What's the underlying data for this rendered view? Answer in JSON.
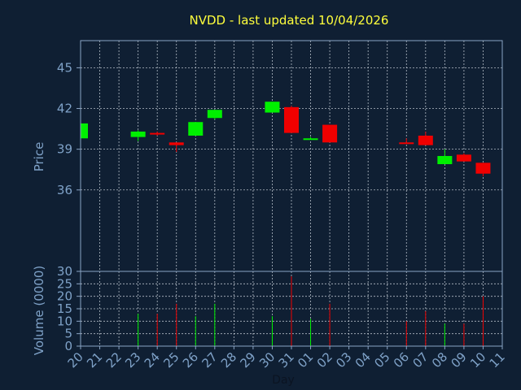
{
  "chart_data": {
    "type": "candlestick",
    "title": "NVDD - last updated 10/04/2026",
    "xlabel": "Day",
    "price_panel": {
      "ylabel": "Price",
      "ylim": [
        30,
        47
      ],
      "yticks": [
        30,
        36,
        39,
        42,
        45
      ],
      "grid": true
    },
    "volume_panel": {
      "ylabel": "Volume (0000)",
      "ylim": [
        0,
        30
      ],
      "yticks": [
        0,
        5,
        10,
        15,
        20,
        25
      ],
      "grid": true
    },
    "x_tick_labels": [
      "20",
      "21",
      "22",
      "23",
      "24",
      "25",
      "26",
      "27",
      "28",
      "29",
      "30",
      "31",
      "01",
      "02",
      "03",
      "04",
      "05",
      "06",
      "07",
      "08",
      "09",
      "10",
      "11"
    ],
    "candles": [
      {
        "x": 0,
        "open": 39.8,
        "high": 40.9,
        "low": 39.8,
        "close": 40.9,
        "volume": 0,
        "dir": "up"
      },
      {
        "x": 3,
        "open": 39.9,
        "high": 40.4,
        "low": 39.6,
        "close": 40.3,
        "volume": 13,
        "dir": "up"
      },
      {
        "x": 4,
        "open": 40.2,
        "high": 40.3,
        "low": 40.0,
        "close": 40.2,
        "volume": 13,
        "dir": "down"
      },
      {
        "x": 5,
        "open": 39.5,
        "high": 39.5,
        "low": 38.8,
        "close": 39.3,
        "volume": 17,
        "dir": "down"
      },
      {
        "x": 6,
        "open": 40.0,
        "high": 41.0,
        "low": 40.0,
        "close": 41.0,
        "volume": 12,
        "dir": "up"
      },
      {
        "x": 7,
        "open": 41.3,
        "high": 41.9,
        "low": 41.2,
        "close": 41.9,
        "volume": 17,
        "dir": "up"
      },
      {
        "x": 10,
        "open": 41.7,
        "high": 42.5,
        "low": 41.7,
        "close": 42.5,
        "volume": 12,
        "dir": "up"
      },
      {
        "x": 11,
        "open": 42.1,
        "high": 42.2,
        "low": 40.2,
        "close": 40.2,
        "volume": 28,
        "dir": "down"
      },
      {
        "x": 12,
        "open": 39.8,
        "high": 39.9,
        "low": 39.7,
        "close": 39.8,
        "volume": 11,
        "dir": "up"
      },
      {
        "x": 13,
        "open": 40.8,
        "high": 40.8,
        "low": 39.5,
        "close": 39.5,
        "volume": 17,
        "dir": "down"
      },
      {
        "x": 17,
        "open": 39.5,
        "high": 39.8,
        "low": 39.4,
        "close": 39.5,
        "volume": 10,
        "dir": "down"
      },
      {
        "x": 18,
        "open": 40.0,
        "high": 40.3,
        "low": 39.3,
        "close": 39.3,
        "volume": 14,
        "dir": "down"
      },
      {
        "x": 19,
        "open": 37.9,
        "high": 39.0,
        "low": 37.9,
        "close": 38.5,
        "volume": 9,
        "dir": "up"
      },
      {
        "x": 20,
        "open": 38.6,
        "high": 38.7,
        "low": 38.1,
        "close": 38.1,
        "volume": 9,
        "dir": "down"
      },
      {
        "x": 21,
        "open": 38.0,
        "high": 38.0,
        "low": 37.0,
        "close": 37.2,
        "volume": 20,
        "dir": "down"
      }
    ],
    "colors": {
      "up": "#00f000",
      "down": "#f00000",
      "background": "#0f1f33",
      "title": "#ffff3c",
      "axis_text": "#7fa2c8"
    }
  }
}
